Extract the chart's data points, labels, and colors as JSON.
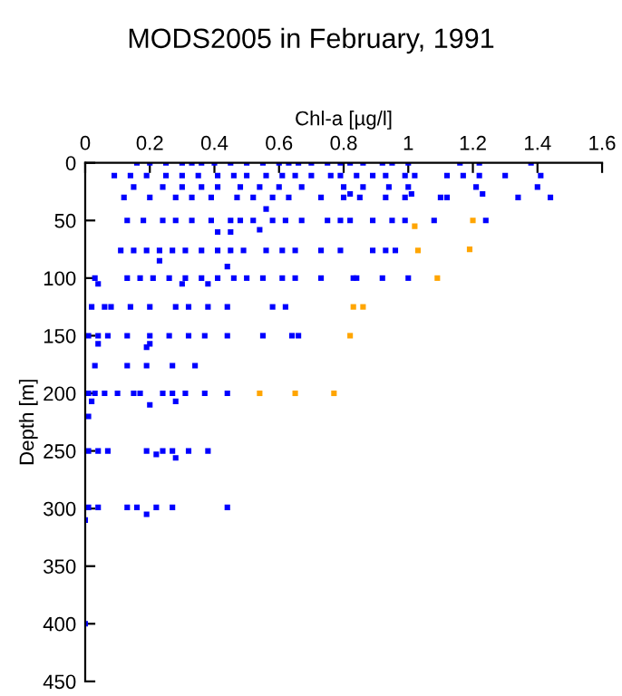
{
  "chart_data": {
    "type": "scatter",
    "title": "MODS2005 in February, 1991",
    "xlabel": "Chl-a [µg/l]",
    "ylabel": "Depth [m]",
    "xlim": [
      0,
      1.6
    ],
    "xticks": [
      0,
      0.2,
      0.4,
      0.6,
      0.8,
      1,
      1.2,
      1.4,
      1.6
    ],
    "ylim": [
      450,
      0
    ],
    "yticks": [
      0,
      50,
      100,
      150,
      200,
      250,
      300,
      350,
      400,
      450
    ],
    "grid": false,
    "legend": false,
    "marker": "square",
    "series": [
      {
        "color": "#0000ff",
        "x": [
          0.16,
          0.2,
          0.25,
          0.3,
          0.33,
          0.36,
          0.4,
          0.45,
          0.5,
          0.55,
          0.6,
          0.63,
          0.66,
          0.7,
          0.75,
          0.79,
          0.82,
          0.86,
          0.92,
          0.95,
          1.0,
          1.16,
          1.22,
          1.38,
          0.09,
          0.14,
          0.19,
          0.25,
          0.3,
          0.35,
          0.41,
          0.46,
          0.5,
          0.56,
          0.61,
          0.65,
          0.7,
          0.76,
          0.79,
          0.84,
          0.89,
          0.93,
          0.99,
          1.02,
          1.12,
          1.17,
          1.22,
          1.3,
          1.41,
          0.15,
          0.24,
          0.3,
          0.36,
          0.41,
          0.48,
          0.54,
          0.6,
          0.67,
          0.8,
          0.86,
          0.94,
          1.0,
          1.21,
          1.4,
          0.82,
          1.01,
          1.23,
          0.12,
          0.2,
          0.28,
          0.33,
          0.39,
          0.47,
          0.52,
          0.58,
          0.63,
          0.73,
          0.8,
          0.85,
          0.93,
          0.99,
          1.1,
          1.12,
          1.34,
          1.44,
          0.56,
          0.13,
          0.18,
          0.24,
          0.28,
          0.33,
          0.39,
          0.45,
          0.48,
          0.52,
          0.58,
          0.62,
          0.67,
          0.75,
          0.79,
          0.82,
          0.89,
          0.95,
          0.99,
          1.08,
          1.24,
          0.41,
          0.45,
          0.54,
          0.11,
          0.15,
          0.19,
          0.23,
          0.27,
          0.31,
          0.36,
          0.41,
          0.45,
          0.49,
          0.56,
          0.61,
          0.65,
          0.73,
          0.79,
          0.89,
          0.93,
          0.96,
          0.23,
          0.44,
          0.03,
          0.13,
          0.17,
          0.21,
          0.26,
          0.31,
          0.36,
          0.41,
          0.46,
          0.5,
          0.55,
          0.61,
          0.65,
          0.73,
          0.83,
          0.84,
          0.92,
          1.0,
          0.04,
          0.3,
          0.38,
          0.02,
          0.06,
          0.08,
          0.14,
          0.2,
          0.28,
          0.32,
          0.38,
          0.44,
          0.58,
          0.62,
          0.01,
          0.04,
          0.07,
          0.13,
          0.2,
          0.26,
          0.32,
          0.37,
          0.44,
          0.55,
          0.64,
          0.66,
          0.19,
          0.03,
          0.13,
          0.19,
          0.27,
          0.34,
          0.04,
          0.2,
          0.01,
          0.03,
          0.06,
          0.1,
          0.15,
          0.17,
          0.24,
          0.27,
          0.31,
          0.37,
          0.44,
          0.02,
          0.2,
          0.28,
          0.01,
          0.01,
          0.04,
          0.07,
          0.19,
          0.24,
          0.27,
          0.32,
          0.38,
          0.28,
          0.22,
          0.01,
          0.04,
          0.13,
          0.16,
          0.22,
          0.27,
          0.44,
          0.19,
          0.0,
          0.0
        ],
        "values": [
          0,
          0,
          0,
          0,
          0,
          0,
          0,
          0,
          0,
          0,
          0,
          0,
          0,
          0,
          0,
          0,
          0,
          0,
          0,
          0,
          0,
          0,
          0,
          0,
          11,
          11,
          11,
          11,
          11,
          11,
          11,
          11,
          11,
          11,
          11,
          11,
          11,
          11,
          11,
          11,
          11,
          11,
          11,
          11,
          11,
          11,
          11,
          11,
          11,
          21,
          21,
          21,
          21,
          21,
          21,
          21,
          21,
          21,
          21,
          21,
          21,
          21,
          21,
          21,
          27,
          27,
          27,
          30,
          30,
          30,
          30,
          30,
          30,
          30,
          30,
          30,
          30,
          30,
          30,
          30,
          30,
          30,
          30,
          30,
          30,
          40,
          50,
          50,
          50,
          50,
          50,
          50,
          50,
          50,
          50,
          50,
          50,
          50,
          50,
          50,
          50,
          50,
          50,
          50,
          50,
          50,
          60,
          60,
          58,
          76,
          76,
          76,
          76,
          76,
          76,
          76,
          76,
          76,
          76,
          76,
          76,
          76,
          76,
          76,
          76,
          76,
          76,
          85,
          90,
          100,
          100,
          100,
          100,
          100,
          100,
          100,
          100,
          100,
          100,
          100,
          100,
          100,
          100,
          100,
          100,
          100,
          100,
          105,
          105,
          105,
          125,
          125,
          125,
          125,
          125,
          125,
          125,
          125,
          125,
          125,
          125,
          150,
          150,
          150,
          150,
          150,
          150,
          150,
          150,
          150,
          150,
          150,
          150,
          160,
          176,
          176,
          176,
          176,
          176,
          157,
          157,
          200,
          200,
          200,
          200,
          200,
          200,
          200,
          200,
          200,
          200,
          200,
          207,
          210,
          207,
          220,
          250,
          250,
          250,
          250,
          250,
          250,
          250,
          250,
          256,
          253,
          299,
          299,
          299,
          299,
          299,
          299,
          299,
          305,
          310,
          400
        ]
      },
      {
        "color": "#ffa500",
        "x": [
          1.02,
          1.2,
          1.03,
          1.19,
          1.09,
          0.83,
          0.86,
          0.82,
          0.54,
          0.65,
          0.77
        ],
        "values": [
          55,
          50,
          76,
          75,
          100,
          125,
          125,
          150,
          200,
          200,
          200
        ]
      }
    ]
  }
}
